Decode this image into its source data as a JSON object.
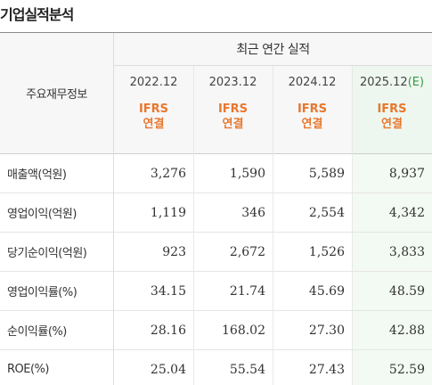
{
  "title": "기업실적분석",
  "header": {
    "row_label": "주요재무정보",
    "group_label": "최근 연간 실적",
    "columns": [
      {
        "year": "2022.12",
        "estimate": "",
        "standard": [
          "IFRS",
          "연결"
        ]
      },
      {
        "year": "2023.12",
        "estimate": "",
        "standard": [
          "IFRS",
          "연결"
        ]
      },
      {
        "year": "2024.12",
        "estimate": "",
        "standard": [
          "IFRS",
          "연결"
        ]
      },
      {
        "year": "2025.12",
        "estimate": "(E)",
        "standard": [
          "IFRS",
          "연결"
        ]
      }
    ]
  },
  "rows": [
    {
      "label": "매출액(억원)",
      "values": [
        "3,276",
        "1,590",
        "5,589",
        "8,937"
      ]
    },
    {
      "label": "영업이익(억원)",
      "values": [
        "1,119",
        "346",
        "2,554",
        "4,342"
      ]
    },
    {
      "label": "당기순이익(억원)",
      "values": [
        "923",
        "2,672",
        "1,526",
        "3,833"
      ]
    },
    {
      "label": "영업이익률(%)",
      "values": [
        "34.15",
        "21.74",
        "45.69",
        "48.59"
      ]
    },
    {
      "label": "순이익률(%)",
      "values": [
        "28.16",
        "168.02",
        "27.30",
        "42.88"
      ]
    },
    {
      "label": "ROE(%)",
      "values": [
        "25.04",
        "55.54",
        "27.43",
        "52.59"
      ]
    }
  ],
  "colors": {
    "standard": "#e8772e",
    "estimate_bg": "#f3f9f3",
    "estimate_text": "#3a9a4a"
  }
}
